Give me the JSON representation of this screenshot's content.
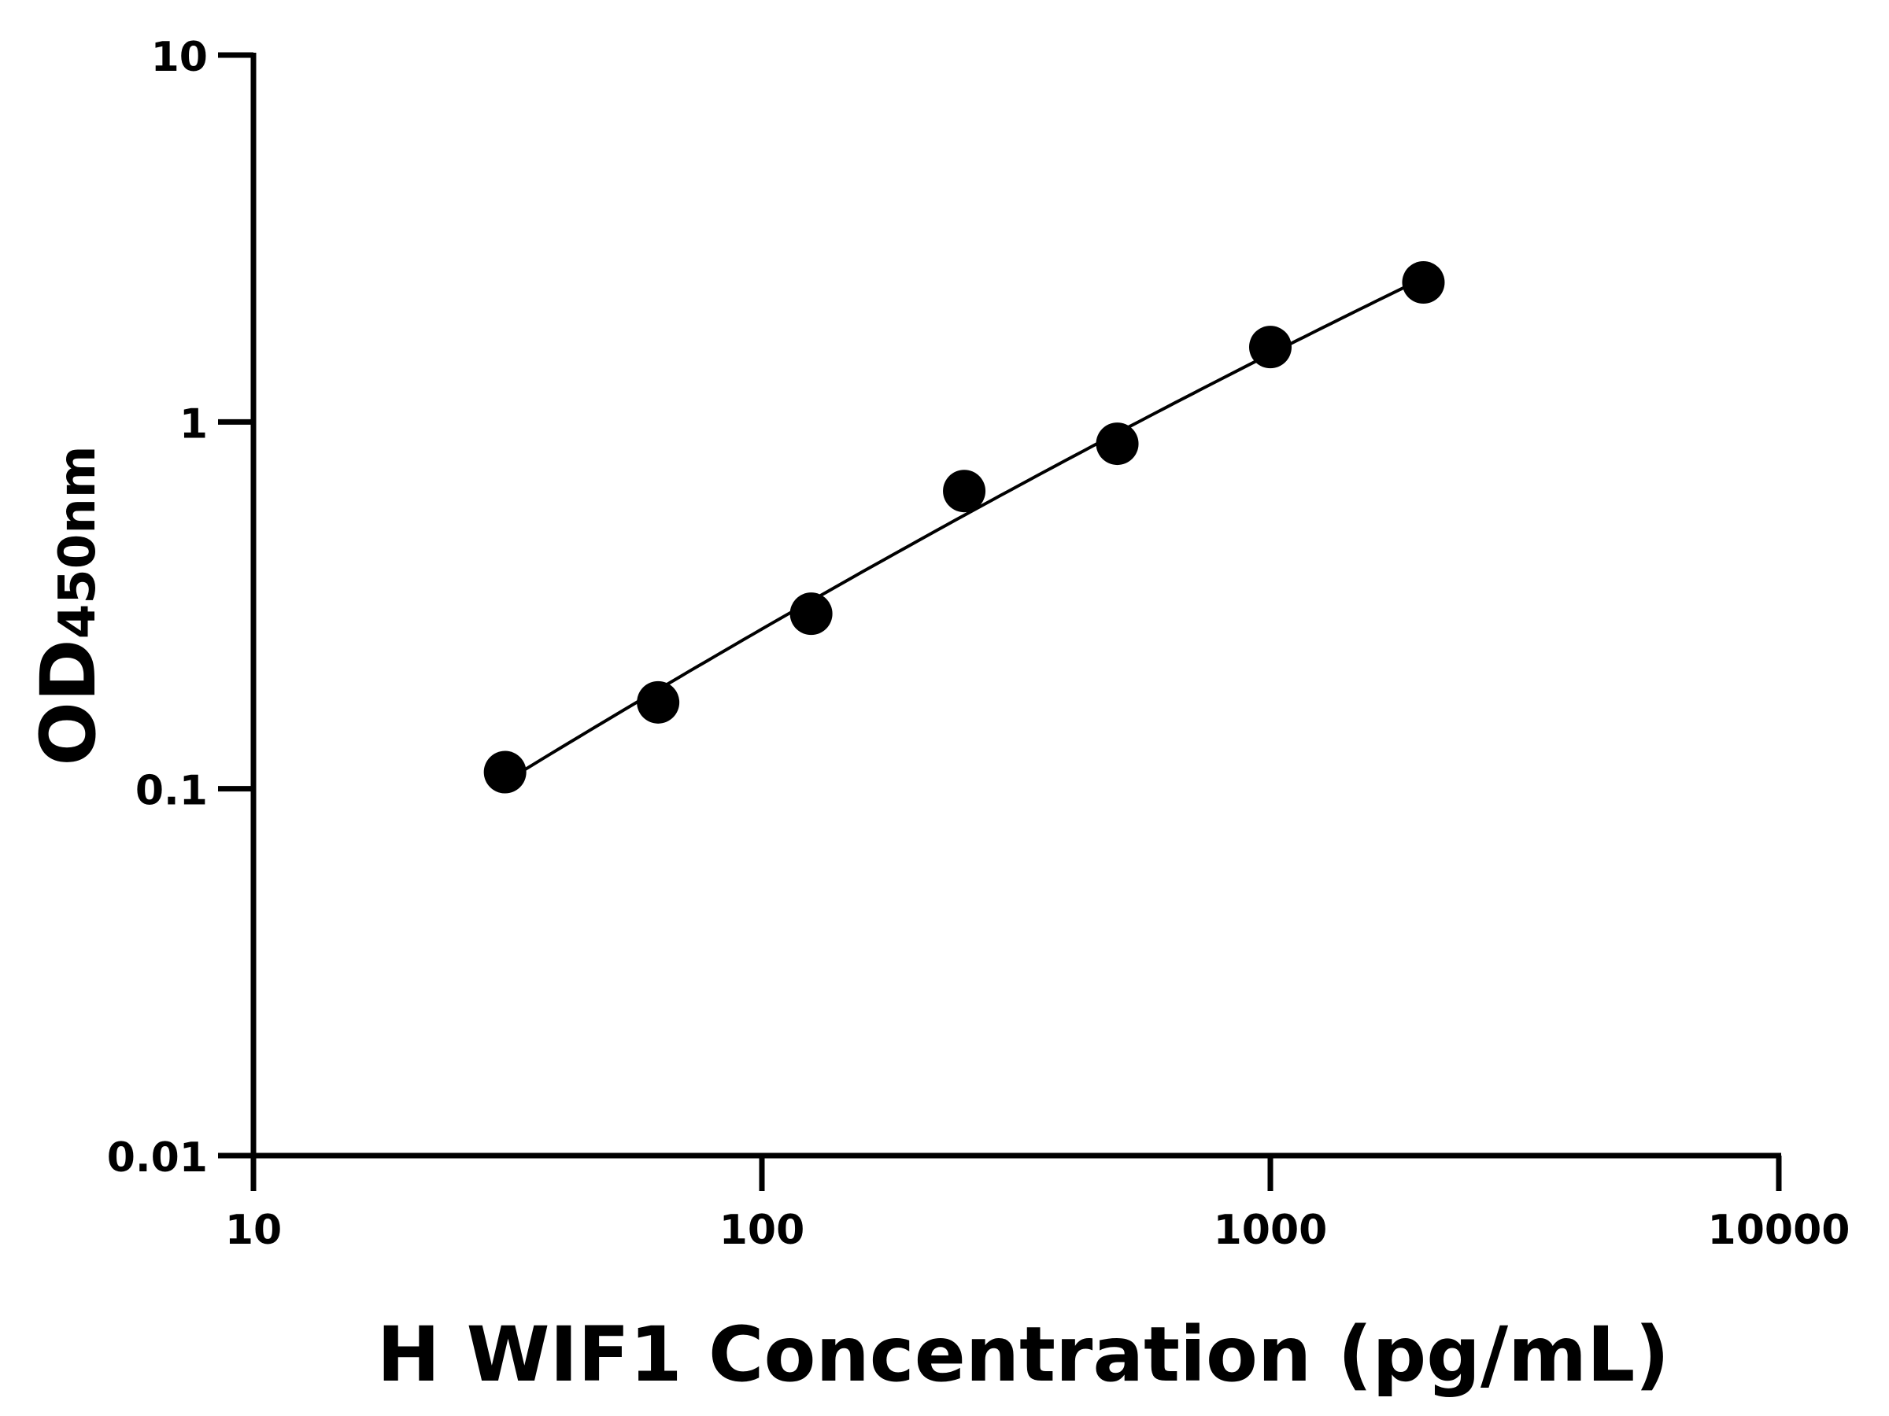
{
  "chart_data": {
    "type": "scatter",
    "title": "",
    "xlabel": "H WIF1 Concentration (pg/mL)",
    "ylabel_main": "OD",
    "ylabel_sub": "450nm",
    "x_scale": "log",
    "y_scale": "log",
    "xlim": [
      10,
      10000
    ],
    "ylim": [
      0.01,
      10
    ],
    "x_ticks": [
      "10",
      "100",
      "1000",
      "10000"
    ],
    "y_ticks": [
      "0.01",
      "0.1",
      "1",
      "10"
    ],
    "grid": false,
    "legend": "none",
    "fit_curve": true,
    "marker_color": "#000000",
    "line_color": "#000000",
    "series": [
      {
        "x": [
          31.25,
          62.5,
          125,
          250,
          500,
          1000,
          2000
        ],
        "y": [
          0.111,
          0.172,
          0.3,
          0.648,
          0.872,
          1.6,
          2.4
        ]
      }
    ]
  }
}
